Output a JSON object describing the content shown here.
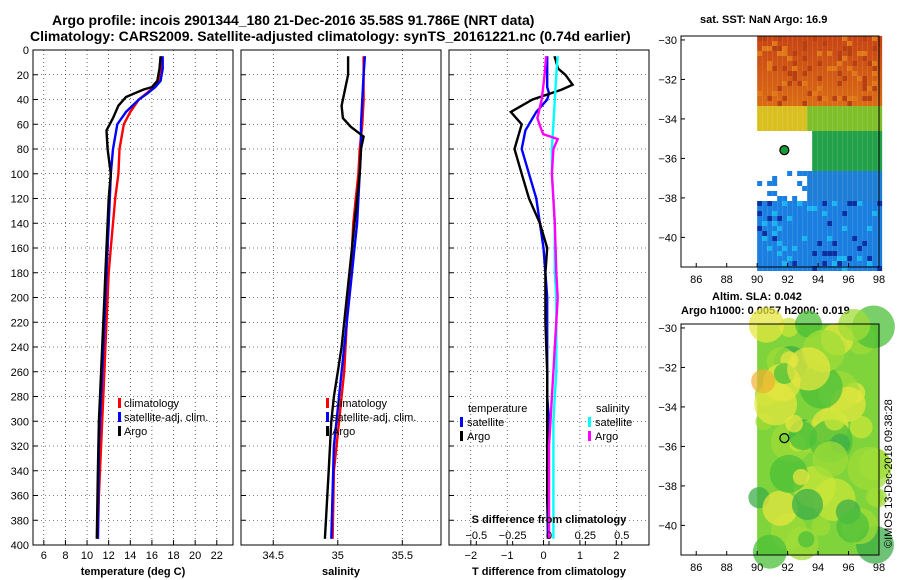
{
  "header": {
    "title1": "Argo profile: incois 2901344_180 21-Dec-2016 35.58S 91.786E (NRT data)",
    "title2": "Climatology: CARS2009. Satellite-adjusted climatology: synTS_20161221.nc (0.74d earlier)"
  },
  "maps": {
    "sst_title": "sat. SST: NaN Argo: 16.9",
    "sla_title1": "Altim. SLA: 0.042",
    "sla_title2": "Argo h1000: 0.0057 h2000: 0.019",
    "credit": "©IMOS 13-Dec-2018 09:38:28"
  },
  "chart_data": [
    {
      "type": "line",
      "panel": "temperature",
      "xlabel": "temperature (deg C)",
      "xlim": [
        5,
        23.5
      ],
      "xticks": [
        6,
        8,
        10,
        12,
        14,
        16,
        18,
        20,
        22
      ],
      "ylim": [
        400,
        0
      ],
      "yticks": [
        0,
        20,
        40,
        60,
        80,
        100,
        120,
        140,
        160,
        180,
        200,
        220,
        240,
        260,
        280,
        300,
        320,
        340,
        360,
        380,
        400
      ],
      "grid": true,
      "legend": [
        "climatology",
        "satellite-adj. clim.",
        "Argo"
      ],
      "series": [
        {
          "name": "climatology",
          "color": "#ff0000",
          "x": [
            16.9,
            16.9,
            16.7,
            16.2,
            15.5,
            14.8,
            14.0,
            13.4,
            13.0,
            12.9,
            12.6,
            12.4,
            12.2,
            12.0,
            11.9,
            11.8,
            11.7,
            11.6,
            11.5,
            11.4,
            11.3,
            11.2,
            11.1,
            11.0
          ],
          "y": [
            5,
            15,
            25,
            30,
            35,
            40,
            50,
            60,
            80,
            100,
            120,
            140,
            160,
            180,
            200,
            220,
            240,
            260,
            280,
            300,
            320,
            340,
            360,
            395
          ]
        },
        {
          "name": "satellite-adj. clim.",
          "color": "#0000ff",
          "x": [
            17.0,
            17.0,
            16.8,
            16.3,
            15.6,
            14.8,
            13.6,
            12.8,
            12.4,
            12.2,
            12.1,
            12.0,
            11.9,
            11.8,
            11.7,
            11.6,
            11.5,
            11.4,
            11.3,
            11.2,
            11.1,
            11.0
          ],
          "y": [
            5,
            15,
            25,
            30,
            35,
            40,
            50,
            60,
            80,
            100,
            120,
            140,
            160,
            180,
            200,
            220,
            240,
            260,
            280,
            300,
            320,
            395
          ]
        },
        {
          "name": "Argo",
          "color": "#000000",
          "x": [
            16.8,
            16.7,
            16.5,
            16.0,
            15.2,
            14.4,
            13.6,
            12.9,
            12.4,
            11.8,
            11.9,
            12.2,
            12.0,
            11.9,
            11.8,
            11.7,
            11.6,
            11.5,
            11.4,
            11.3,
            11.2,
            11.1,
            11.0,
            10.9
          ],
          "y": [
            5,
            15,
            25,
            30,
            32,
            35,
            38,
            45,
            55,
            65,
            80,
            100,
            120,
            140,
            160,
            180,
            200,
            220,
            240,
            260,
            280,
            300,
            340,
            395
          ]
        }
      ]
    },
    {
      "type": "line",
      "panel": "salinity",
      "xlabel": "salinity",
      "xlim": [
        34.25,
        35.8
      ],
      "xticks": [
        34.5,
        35,
        35.5
      ],
      "ylim": [
        400,
        0
      ],
      "grid": true,
      "legend": [
        "climatology",
        "satellite-adj. clim.",
        "Argo"
      ],
      "series": [
        {
          "name": "climatology",
          "color": "#ff0000",
          "x": [
            35.2,
            35.2,
            35.2,
            35.19,
            35.17,
            35.16,
            35.14,
            35.12,
            35.11,
            35.1,
            35.08,
            35.07,
            35.06,
            35.05,
            35.03,
            35.01,
            34.99,
            34.97,
            34.96
          ],
          "y": [
            5,
            20,
            40,
            60,
            80,
            100,
            120,
            140,
            160,
            180,
            200,
            220,
            240,
            260,
            280,
            300,
            320,
            340,
            395
          ]
        },
        {
          "name": "satellite-adj. clim.",
          "color": "#0000ff",
          "x": [
            35.21,
            35.2,
            35.19,
            35.18,
            35.18,
            35.17,
            35.16,
            35.15,
            35.13,
            35.11,
            35.09,
            35.07,
            35.05,
            35.03,
            35.01,
            34.99,
            34.97,
            34.95
          ],
          "y": [
            5,
            20,
            40,
            60,
            80,
            100,
            120,
            140,
            160,
            180,
            200,
            220,
            240,
            260,
            280,
            300,
            320,
            395
          ]
        },
        {
          "name": "Argo",
          "color": "#000000",
          "x": [
            35.08,
            35.08,
            35.06,
            35.03,
            35.04,
            35.1,
            35.2,
            35.18,
            35.17,
            35.15,
            35.13,
            35.11,
            35.09,
            35.07,
            35.05,
            35.03,
            35.0,
            34.97,
            34.95,
            34.93,
            34.9
          ],
          "y": [
            5,
            20,
            30,
            45,
            55,
            62,
            70,
            80,
            100,
            120,
            140,
            160,
            180,
            200,
            220,
            240,
            260,
            280,
            300,
            340,
            395
          ]
        }
      ]
    },
    {
      "type": "line",
      "panel": "difference",
      "xlabel": "T difference from climatology",
      "xlabel_top": "S difference from climatology",
      "xlim": [
        -2.6,
        2.9
      ],
      "xticks": [
        -2,
        -1,
        0,
        1,
        2
      ],
      "sticks": [
        -0.5,
        -0.25,
        0,
        0.25,
        0.5
      ],
      "ylim": [
        400,
        0
      ],
      "grid": true,
      "legend_temperature_title": "temperature",
      "legend_salinity_title": "salinity",
      "legend_temperature": [
        "satellite",
        "Argo"
      ],
      "legend_salinity": [
        "satellite",
        "Argo"
      ],
      "series": [
        {
          "name": "temperature satellite",
          "color": "#0000ff",
          "x": [
            0.1,
            0.1,
            0.1,
            0.15,
            0.1,
            -0.2,
            -0.5,
            -0.6,
            -0.4,
            -0.2,
            -0.1,
            0.0,
            0.05,
            0.1,
            0.1,
            0.1,
            0.15,
            0.1,
            0.1,
            0.1,
            0.12
          ],
          "y": [
            5,
            20,
            30,
            35,
            40,
            50,
            65,
            80,
            100,
            120,
            140,
            160,
            180,
            200,
            240,
            280,
            300,
            320,
            340,
            360,
            395
          ]
        },
        {
          "name": "temperature Argo",
          "color": "#000000",
          "x": [
            0.3,
            0.4,
            0.6,
            0.8,
            0.5,
            -0.3,
            -0.9,
            -0.6,
            -0.8,
            -0.6,
            -0.4,
            -0.1,
            0.1,
            0.05,
            0.05,
            0.1,
            0.1,
            0.1,
            0.1,
            0.1,
            0.15
          ],
          "y": [
            5,
            15,
            20,
            28,
            32,
            40,
            50,
            60,
            80,
            100,
            120,
            140,
            160,
            180,
            220,
            260,
            300,
            320,
            340,
            360,
            395
          ]
        },
        {
          "name": "salinity satellite",
          "color": "#00ffff",
          "x": [
            0.06,
            0.05,
            0.04,
            0.03,
            0.02,
            0.02,
            0.03,
            0.04,
            0.04,
            0.04,
            0.05,
            0.05,
            0.05,
            0.05,
            0.04,
            0.03,
            0.03,
            0.03,
            0.03
          ],
          "y": [
            5,
            20,
            40,
            60,
            80,
            100,
            120,
            140,
            160,
            180,
            200,
            220,
            240,
            260,
            280,
            300,
            340,
            370,
            395
          ]
        },
        {
          "name": "salinity Argo",
          "color": "#ff00ff",
          "x": [
            -0.02,
            -0.03,
            -0.05,
            -0.08,
            -0.06,
            -0.04,
            0.01,
            0.06,
            0.03,
            0.02,
            0.04,
            0.05,
            0.06,
            0.05,
            0.04,
            0.03,
            0.02,
            0.01,
            0.0,
            0.0,
            0.0
          ],
          "y": [
            5,
            20,
            40,
            55,
            62,
            68,
            70,
            72,
            80,
            100,
            140,
            180,
            200,
            220,
            240,
            260,
            280,
            300,
            320,
            360,
            395
          ]
        }
      ]
    },
    {
      "type": "heatmap",
      "panel": "sat. SST map",
      "xlim": [
        85,
        98
      ],
      "xticks": [
        86,
        88,
        90,
        92,
        94,
        96,
        98
      ],
      "ylim": [
        -41.5,
        -29.8
      ],
      "yticks": [
        -30,
        -32,
        -34,
        -36,
        -38,
        -40
      ],
      "argo_position": {
        "lon": 91.786,
        "lat": -35.58
      }
    },
    {
      "type": "heatmap",
      "panel": "Altim. SLA map",
      "xlim": [
        85,
        98
      ],
      "xticks": [
        86,
        88,
        90,
        92,
        94,
        96,
        98
      ],
      "ylim": [
        -41.5,
        -29.8
      ],
      "yticks": [
        -30,
        -32,
        -34,
        -36,
        -38,
        -40
      ],
      "argo_position": {
        "lon": 91.786,
        "lat": -35.58
      }
    }
  ]
}
